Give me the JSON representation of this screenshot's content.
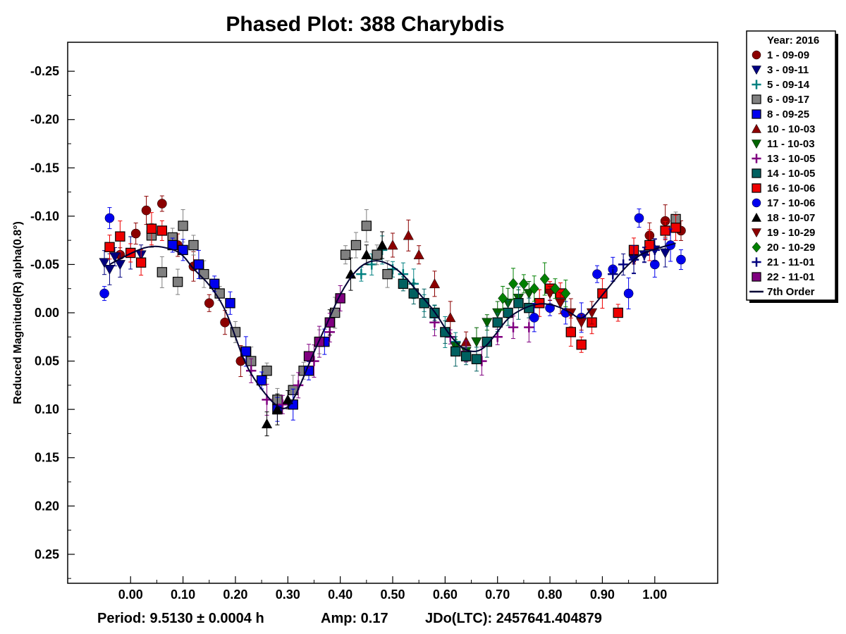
{
  "chart_data": {
    "type": "scatter",
    "title": "Phased Plot: 388 Charybdis",
    "xlabel": "",
    "ylabel": "Reduced Magnitude(R) alpha(0.8°)",
    "xlim": [
      -0.12,
      1.12
    ],
    "ylim": [
      0.28,
      -0.28
    ],
    "y_inverted": true,
    "x_ticks": [
      "0.00",
      "0.10",
      "0.20",
      "0.30",
      "0.40",
      "0.50",
      "0.60",
      "0.70",
      "0.80",
      "0.90",
      "1.00"
    ],
    "y_ticks": [
      "-0.25",
      "-0.20",
      "-0.15",
      "-0.10",
      "-0.05",
      "0.00",
      "0.05",
      "0.10",
      "0.15",
      "0.20",
      "0.25"
    ],
    "grid": false,
    "legend_position": "right-outside-top",
    "legend_title": "Year: 2016",
    "fit_line": {
      "name": "7th Order",
      "color": "#000033",
      "points": [
        [
          -0.04,
          -0.05
        ],
        [
          0.0,
          -0.062
        ],
        [
          0.04,
          -0.07
        ],
        [
          0.08,
          -0.066
        ],
        [
          0.1,
          -0.06
        ],
        [
          0.12,
          -0.045
        ],
        [
          0.15,
          -0.03
        ],
        [
          0.18,
          -0.005
        ],
        [
          0.2,
          0.025
        ],
        [
          0.22,
          0.055
        ],
        [
          0.25,
          0.08
        ],
        [
          0.28,
          0.098
        ],
        [
          0.3,
          0.1
        ],
        [
          0.32,
          0.08
        ],
        [
          0.35,
          0.04
        ],
        [
          0.38,
          0.005
        ],
        [
          0.4,
          -0.02
        ],
        [
          0.43,
          -0.045
        ],
        [
          0.46,
          -0.055
        ],
        [
          0.49,
          -0.052
        ],
        [
          0.52,
          -0.04
        ],
        [
          0.55,
          -0.02
        ],
        [
          0.58,
          -0.002
        ],
        [
          0.61,
          0.025
        ],
        [
          0.64,
          0.04
        ],
        [
          0.67,
          0.04
        ],
        [
          0.7,
          0.02
        ],
        [
          0.72,
          0.005
        ],
        [
          0.75,
          -0.005
        ],
        [
          0.78,
          -0.01
        ],
        [
          0.81,
          -0.008
        ],
        [
          0.84,
          0.0
        ],
        [
          0.86,
          0.008
        ],
        [
          0.88,
          -0.005
        ],
        [
          0.91,
          -0.025
        ],
        [
          0.94,
          -0.045
        ],
        [
          0.97,
          -0.06
        ],
        [
          1.0,
          -0.066
        ],
        [
          1.04,
          -0.072
        ]
      ]
    },
    "series": [
      {
        "name": "1 - 09-09",
        "color": "#8b0000",
        "marker": "circle",
        "x": [
          -0.02,
          0.01,
          0.03,
          0.06,
          0.09,
          0.12,
          0.15,
          0.18,
          0.21,
          0.96,
          0.99,
          1.02,
          1.05
        ],
        "y": [
          -0.06,
          -0.082,
          -0.106,
          -0.113,
          -0.07,
          -0.048,
          -0.01,
          0.01,
          0.05,
          -0.06,
          -0.08,
          -0.095,
          -0.085
        ]
      },
      {
        "name": "3 - 09-11",
        "color": "#00007f",
        "marker": "triangle-down",
        "x": [
          -0.05,
          -0.04,
          -0.03,
          -0.02,
          0.0,
          0.02,
          0.96,
          0.98,
          1.0,
          1.02
        ],
        "y": [
          -0.052,
          -0.045,
          -0.058,
          -0.05,
          -0.062,
          -0.06,
          -0.055,
          -0.06,
          -0.065,
          -0.062
        ]
      },
      {
        "name": "5 - 09-14",
        "color": "#008080",
        "marker": "plus",
        "x": [
          0.44,
          0.46,
          0.48,
          0.5,
          0.52,
          0.54,
          0.56,
          0.58,
          0.6,
          0.62
        ],
        "y": [
          -0.04,
          -0.05,
          -0.065,
          -0.045,
          -0.04,
          -0.03,
          -0.01,
          0.005,
          0.02,
          0.03
        ]
      },
      {
        "name": "6 - 09-17",
        "color": "#808080",
        "marker": "square",
        "x": [
          0.04,
          0.06,
          0.08,
          0.09,
          0.1,
          0.12,
          0.14,
          0.17,
          0.2,
          0.23,
          0.26,
          0.28,
          0.31,
          0.33,
          0.36,
          0.39,
          0.41,
          0.43,
          0.45,
          0.47,
          0.49,
          1.04
        ],
        "y": [
          -0.08,
          -0.042,
          -0.078,
          -0.032,
          -0.09,
          -0.07,
          -0.04,
          -0.02,
          0.02,
          0.05,
          0.06,
          0.09,
          0.08,
          0.06,
          0.03,
          0.0,
          -0.06,
          -0.07,
          -0.09,
          -0.06,
          -0.04,
          -0.097
        ]
      },
      {
        "name": "8 - 09-25",
        "color": "#0000ee",
        "marker": "square",
        "x": [
          0.08,
          0.1,
          0.13,
          0.16,
          0.19,
          0.22,
          0.25,
          0.28,
          0.31,
          0.34,
          0.37
        ],
        "y": [
          -0.07,
          -0.065,
          -0.05,
          -0.03,
          -0.01,
          0.04,
          0.07,
          0.1,
          0.095,
          0.06,
          0.03
        ]
      },
      {
        "name": "10 - 10-03",
        "color": "#8b0000",
        "marker": "triangle-up",
        "x": [
          0.5,
          0.53,
          0.55,
          0.58,
          0.61,
          0.64
        ],
        "y": [
          -0.07,
          -0.08,
          -0.06,
          -0.03,
          0.005,
          0.03
        ]
      },
      {
        "name": "11 - 10-03",
        "color": "#006400",
        "marker": "triangle-down",
        "x": [
          0.62,
          0.64,
          0.66,
          0.68,
          0.7,
          0.72,
          0.74,
          0.76
        ],
        "y": [
          0.035,
          0.04,
          0.03,
          0.01,
          0.0,
          -0.01,
          -0.015,
          -0.02
        ]
      },
      {
        "name": "13 - 10-05",
        "color": "#800080",
        "marker": "plus",
        "x": [
          0.23,
          0.26,
          0.29,
          0.32,
          0.35,
          0.38,
          0.58,
          0.61,
          0.64,
          0.67,
          0.7,
          0.73,
          0.76
        ],
        "y": [
          0.06,
          0.09,
          0.095,
          0.075,
          0.05,
          0.02,
          0.01,
          0.025,
          0.04,
          0.05,
          0.025,
          0.015,
          0.015
        ]
      },
      {
        "name": "14 - 10-05",
        "color": "#006060",
        "marker": "square",
        "x": [
          0.52,
          0.54,
          0.56,
          0.58,
          0.6,
          0.62,
          0.64,
          0.66,
          0.68,
          0.7,
          0.72,
          0.74,
          0.76
        ],
        "y": [
          -0.03,
          -0.02,
          -0.01,
          0.0,
          0.02,
          0.04,
          0.045,
          0.048,
          0.03,
          0.01,
          0.0,
          -0.01,
          -0.005
        ]
      },
      {
        "name": "16 - 10-06",
        "color": "#ee0000",
        "marker": "square",
        "x": [
          -0.04,
          -0.02,
          0.0,
          0.02,
          0.04,
          0.06,
          0.78,
          0.8,
          0.82,
          0.84,
          0.86,
          0.88,
          0.9,
          0.93,
          0.96,
          0.99,
          1.02,
          1.04
        ],
        "y": [
          -0.068,
          -0.079,
          -0.062,
          -0.052,
          -0.087,
          -0.085,
          -0.01,
          -0.025,
          -0.02,
          0.02,
          0.033,
          0.01,
          -0.02,
          0.0,
          -0.065,
          -0.07,
          -0.085,
          -0.088
        ]
      },
      {
        "name": "17 - 10-06",
        "color": "#0000ee",
        "marker": "circle",
        "x": [
          -0.05,
          -0.04,
          0.77,
          0.8,
          0.83,
          0.86,
          0.89,
          0.92,
          0.95,
          0.97,
          1.0,
          1.03,
          1.05
        ],
        "y": [
          -0.02,
          -0.098,
          0.005,
          -0.005,
          0.0,
          0.005,
          -0.04,
          -0.045,
          -0.02,
          -0.098,
          -0.05,
          -0.07,
          -0.055
        ]
      },
      {
        "name": "18 - 10-07",
        "color": "#000000",
        "marker": "triangle-up",
        "x": [
          0.26,
          0.28,
          0.3,
          0.38,
          0.42,
          0.45,
          0.48
        ],
        "y": [
          0.115,
          0.1,
          0.09,
          0.01,
          -0.04,
          -0.06,
          -0.07
        ]
      },
      {
        "name": "19 - 10-29",
        "color": "#8b0000",
        "marker": "triangle-down",
        "x": [
          0.8,
          0.82,
          0.84,
          0.86,
          0.88
        ],
        "y": [
          -0.02,
          -0.01,
          0.0,
          0.01,
          0.0
        ]
      },
      {
        "name": "20 - 10-29",
        "color": "#008000",
        "marker": "diamond",
        "x": [
          0.71,
          0.73,
          0.75,
          0.77,
          0.79,
          0.81,
          0.83
        ],
        "y": [
          -0.015,
          -0.03,
          -0.03,
          -0.025,
          -0.035,
          -0.025,
          -0.02
        ]
      },
      {
        "name": "21 - 11-01",
        "color": "#00007f",
        "marker": "plus",
        "x": [
          0.92,
          0.94,
          0.96,
          0.98,
          1.0
        ],
        "y": [
          -0.04,
          -0.05,
          -0.055,
          -0.06,
          -0.065
        ]
      },
      {
        "name": "22 - 11-01",
        "color": "#800080",
        "marker": "square",
        "x": [
          0.34,
          0.36,
          0.38,
          0.4
        ],
        "y": [
          0.045,
          0.03,
          0.01,
          -0.015
        ]
      }
    ],
    "footer": {
      "period": "Period: 9.5130 ± 0.0004 h",
      "amp": "Amp: 0.17",
      "jdo": "JDo(LTC): 2457641.404879"
    }
  }
}
